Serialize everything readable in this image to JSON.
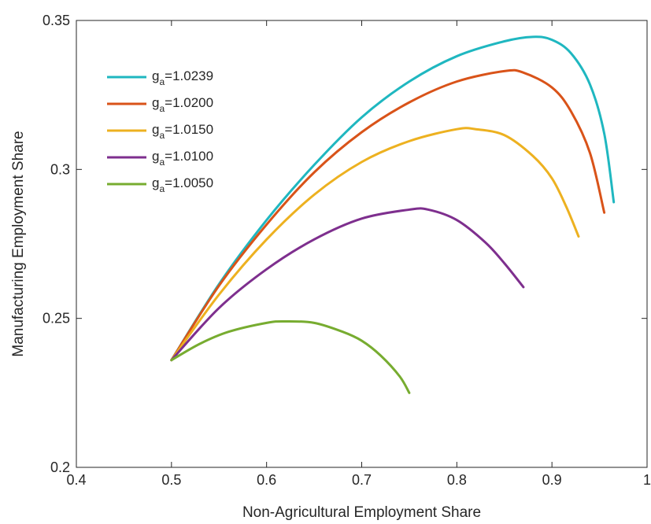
{
  "chart_data": {
    "type": "line",
    "xlabel": "Non-Agricultural Employment Share",
    "ylabel": "Manufacturing Employment Share",
    "xlim": [
      0.4,
      1.0
    ],
    "ylim": [
      0.2,
      0.35
    ],
    "xticks": [
      0.4,
      0.5,
      0.6,
      0.7,
      0.8,
      0.9,
      1.0
    ],
    "xtick_labels": [
      "0.4",
      "0.5",
      "0.6",
      "0.7",
      "0.8",
      "0.9",
      "1"
    ],
    "yticks": [
      0.2,
      0.25,
      0.3,
      0.35
    ],
    "ytick_labels": [
      "0.2",
      "0.25",
      "0.3",
      "0.35"
    ],
    "grid": false,
    "box": true,
    "legend_position": "top-left",
    "series": [
      {
        "label_main": "g",
        "label_sub": "a",
        "label_value": "=1.0239",
        "color": "#1fb7c0",
        "points": [
          [
            0.5,
            0.236
          ],
          [
            0.55,
            0.2615
          ],
          [
            0.6,
            0.283
          ],
          [
            0.65,
            0.3015
          ],
          [
            0.7,
            0.3175
          ],
          [
            0.75,
            0.3295
          ],
          [
            0.8,
            0.338
          ],
          [
            0.85,
            0.343
          ],
          [
            0.88,
            0.3445
          ],
          [
            0.9,
            0.3435
          ],
          [
            0.92,
            0.339
          ],
          [
            0.94,
            0.3285
          ],
          [
            0.955,
            0.312
          ],
          [
            0.965,
            0.289
          ]
        ]
      },
      {
        "label_main": "g",
        "label_sub": "a",
        "label_value": "=1.0200",
        "color": "#d95319",
        "points": [
          [
            0.5,
            0.236
          ],
          [
            0.55,
            0.261
          ],
          [
            0.6,
            0.2815
          ],
          [
            0.65,
            0.299
          ],
          [
            0.7,
            0.3125
          ],
          [
            0.75,
            0.3225
          ],
          [
            0.8,
            0.3295
          ],
          [
            0.85,
            0.333
          ],
          [
            0.87,
            0.3325
          ],
          [
            0.9,
            0.3275
          ],
          [
            0.92,
            0.3195
          ],
          [
            0.94,
            0.3055
          ],
          [
            0.955,
            0.2855
          ]
        ]
      },
      {
        "label_main": "g",
        "label_sub": "a",
        "label_value": "=1.0150",
        "color": "#edb120",
        "points": [
          [
            0.5,
            0.236
          ],
          [
            0.55,
            0.258
          ],
          [
            0.6,
            0.2765
          ],
          [
            0.65,
            0.2915
          ],
          [
            0.7,
            0.3025
          ],
          [
            0.75,
            0.3095
          ],
          [
            0.8,
            0.3135
          ],
          [
            0.82,
            0.3135
          ],
          [
            0.85,
            0.3115
          ],
          [
            0.88,
            0.3045
          ],
          [
            0.9,
            0.297
          ],
          [
            0.915,
            0.2875
          ],
          [
            0.928,
            0.2775
          ]
        ]
      },
      {
        "label_main": "g",
        "label_sub": "a",
        "label_value": "=1.0100",
        "color": "#7e2f8e",
        "points": [
          [
            0.5,
            0.236
          ],
          [
            0.55,
            0.2535
          ],
          [
            0.6,
            0.2665
          ],
          [
            0.65,
            0.2765
          ],
          [
            0.7,
            0.2835
          ],
          [
            0.75,
            0.2865
          ],
          [
            0.77,
            0.2865
          ],
          [
            0.8,
            0.283
          ],
          [
            0.83,
            0.2755
          ],
          [
            0.85,
            0.2685
          ],
          [
            0.87,
            0.2605
          ]
        ]
      },
      {
        "label_main": "g",
        "label_sub": "a",
        "label_value": "=1.0050",
        "color": "#77ac30",
        "points": [
          [
            0.5,
            0.236
          ],
          [
            0.53,
            0.2415
          ],
          [
            0.56,
            0.2455
          ],
          [
            0.6,
            0.2485
          ],
          [
            0.62,
            0.249
          ],
          [
            0.65,
            0.2485
          ],
          [
            0.68,
            0.2455
          ],
          [
            0.7,
            0.2425
          ],
          [
            0.72,
            0.2375
          ],
          [
            0.74,
            0.2305
          ],
          [
            0.75,
            0.225
          ]
        ]
      }
    ]
  }
}
